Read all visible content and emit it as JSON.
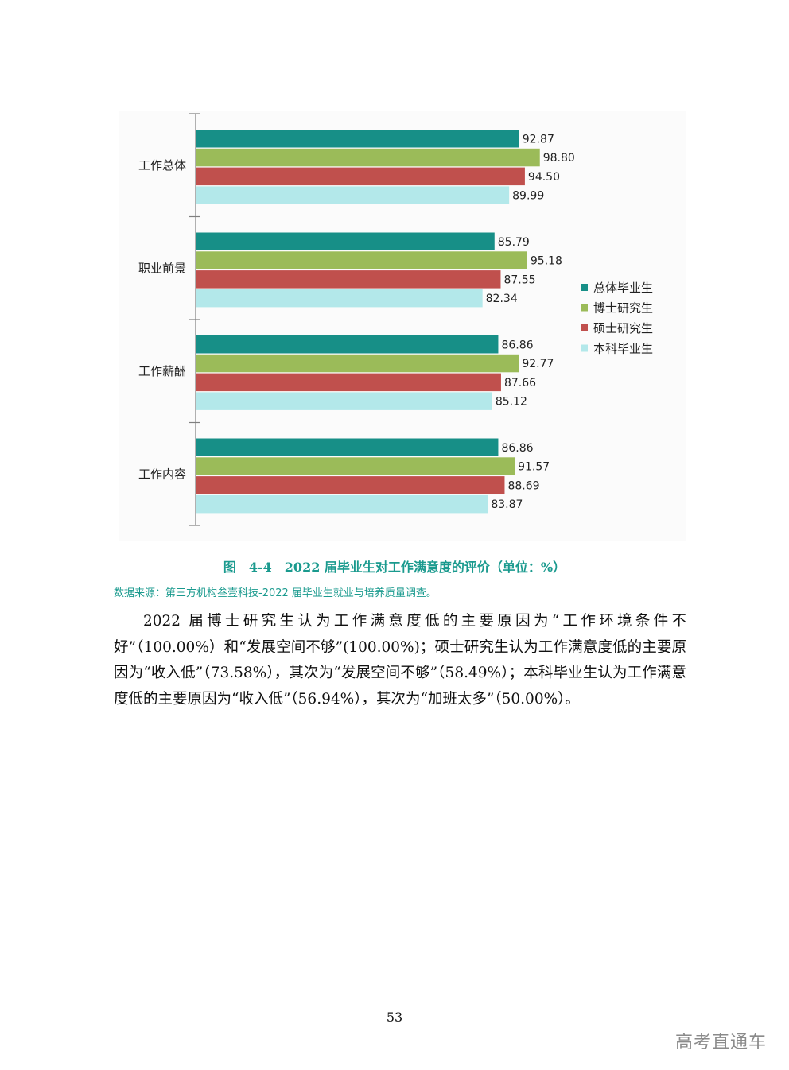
{
  "chart_data": {
    "type": "bar",
    "orientation": "horizontal",
    "categories": [
      "工作总体",
      "职业前景",
      "工作薪酬",
      "工作内容"
    ],
    "series": [
      {
        "name": "总体毕业生",
        "color": "#178f87",
        "values": [
          92.87,
          85.79,
          86.86,
          86.86
        ]
      },
      {
        "name": "博士研究生",
        "color": "#9bbb59",
        "values": [
          98.8,
          95.18,
          92.77,
          91.57
        ]
      },
      {
        "name": "硕士研究生",
        "color": "#c0504d",
        "values": [
          94.5,
          87.55,
          87.66,
          88.69
        ]
      },
      {
        "name": "本科毕业生",
        "color": "#b3e8ea",
        "values": [
          89.99,
          82.34,
          85.12,
          83.87
        ]
      }
    ],
    "value_labels": [
      [
        "92.87",
        "98.80",
        "94.50",
        "89.99"
      ],
      [
        "85.79",
        "95.18",
        "87.55",
        "82.34"
      ],
      [
        "86.86",
        "92.77",
        "87.66",
        "85.12"
      ],
      [
        "86.86",
        "91.57",
        "88.69",
        "83.87"
      ]
    ],
    "legend_position": "right",
    "grid": false
  },
  "caption": "图　4-4　2022 届毕业生对工作满意度的评价（单位：%）",
  "source": "数据来源：第三方机构叁壹科技-2022 届毕业生就业与培养质量调查。",
  "paragraph": "2022 届博士研究生认为工作满意度低的主要原因为“工作环境条件不好”（100.00%）和“发展空间不够”(100.00%)；硕士研究生认为工作满意度低的主要原因为“收入低”（73.58%），其次为“发展空间不够”（58.49%）；本科毕业生认为工作满意度低的主要原因为“收入低”（56.94%），其次为“加班太多”（50.00%）。",
  "page_number": "53",
  "watermark": "高考直通车"
}
